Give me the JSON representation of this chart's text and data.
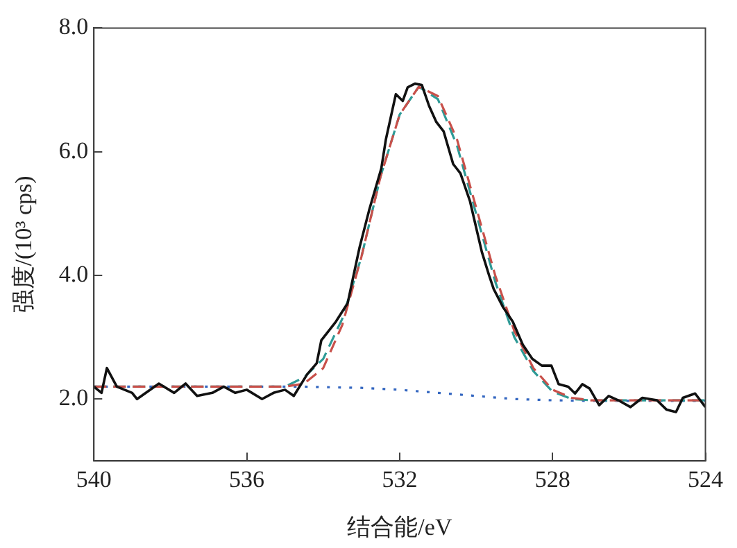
{
  "chart_data": {
    "type": "line",
    "xlabel": "结合能/eV",
    "ylabel": "强度/(10³ cps)",
    "xlim": [
      540,
      524
    ],
    "xticks": [
      540,
      536,
      532,
      528,
      524
    ],
    "ylim": [
      1,
      8
    ],
    "yticks": [
      {
        "value": 2,
        "label": "2.0"
      },
      {
        "value": 4,
        "label": "4.0"
      },
      {
        "value": 6,
        "label": "6.0"
      },
      {
        "value": 8,
        "label": "8.0"
      }
    ],
    "grid": false,
    "legend": false,
    "marker": "none",
    "series": [
      {
        "color": "#111111",
        "line_style": "solid",
        "x": [
          540,
          539.8,
          539.66,
          539.4,
          539.0,
          538.87,
          538.3,
          537.9,
          537.6,
          537.3,
          536.9,
          536.6,
          536.3,
          536.0,
          535.6,
          535.3,
          535.0,
          534.77,
          534.42,
          534.17,
          534.05,
          533.67,
          533.36,
          533.23,
          533.05,
          532.8,
          532.48,
          532.36,
          532.1,
          531.92,
          531.79,
          531.6,
          531.42,
          531.23,
          531.04,
          530.85,
          530.6,
          530.41,
          530.16,
          529.85,
          529.66,
          529.54,
          529.29,
          529.04,
          528.78,
          528.53,
          528.28,
          528.03,
          527.84,
          527.59,
          527.41,
          527.22,
          527.03,
          526.78,
          526.53,
          526.28,
          525.96,
          525.65,
          525.27,
          525.02,
          524.77,
          524.59,
          524.27,
          524.0
        ],
        "values": [
          2.2,
          2.1,
          2.5,
          2.2,
          2.1,
          2.0,
          2.25,
          2.1,
          2.25,
          2.05,
          2.1,
          2.2,
          2.1,
          2.15,
          2.0,
          2.1,
          2.15,
          2.05,
          2.4,
          2.58,
          2.95,
          3.25,
          3.55,
          3.93,
          4.45,
          5.05,
          5.73,
          6.2,
          6.93,
          6.82,
          7.04,
          7.1,
          7.08,
          6.74,
          6.48,
          6.33,
          5.8,
          5.65,
          5.2,
          4.38,
          4.0,
          3.78,
          3.48,
          3.25,
          2.88,
          2.65,
          2.54,
          2.54,
          2.24,
          2.2,
          2.09,
          2.24,
          2.17,
          1.9,
          2.05,
          1.98,
          1.87,
          2.02,
          1.98,
          1.83,
          1.79,
          2.02,
          2.09,
          1.87
        ]
      },
      {
        "color": "#c8504a",
        "line_style": "dashed",
        "x": [
          540,
          535,
          534.5,
          534,
          533.5,
          533,
          532.5,
          532,
          531.5,
          531,
          530.5,
          530,
          529.5,
          529,
          528.5,
          528,
          527.5,
          527,
          524
        ],
        "values": [
          2.2,
          2.2,
          2.25,
          2.5,
          3.2,
          4.3,
          5.6,
          6.6,
          7.05,
          6.9,
          6.2,
          5.1,
          4.0,
          3.1,
          2.5,
          2.15,
          2.02,
          1.98,
          1.98
        ]
      },
      {
        "color": "#2e9a96",
        "line_style": "dashed",
        "x": [
          540,
          535,
          534.5,
          534,
          533.5,
          533,
          532.5,
          532,
          531.5,
          531,
          530.5,
          530,
          529.5,
          529,
          528.5,
          528,
          527.5,
          527,
          524
        ],
        "values": [
          2.2,
          2.2,
          2.35,
          2.65,
          3.3,
          4.3,
          5.6,
          6.6,
          7.05,
          6.85,
          6.1,
          5.0,
          3.9,
          3.0,
          2.45,
          2.12,
          2.0,
          1.98,
          1.98
        ]
      },
      {
        "color": "#3366c0",
        "line_style": "dotted",
        "x": [
          540,
          534.5,
          533,
          532,
          531,
          530,
          529,
          528,
          527,
          524
        ],
        "values": [
          2.2,
          2.2,
          2.18,
          2.15,
          2.1,
          2.05,
          2.0,
          1.98,
          1.97,
          1.97
        ]
      }
    ]
  }
}
